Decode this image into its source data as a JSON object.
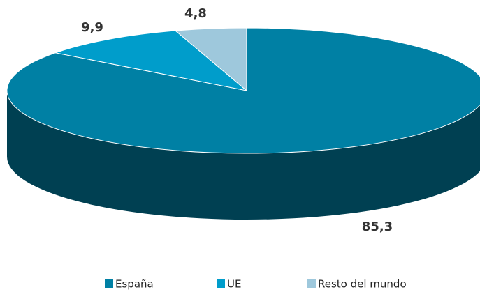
{
  "chart_data": {
    "type": "pie",
    "categories": [
      "España",
      "UE",
      "Resto del mundo"
    ],
    "values": [
      85.3,
      9.9,
      4.8
    ],
    "value_labels": [
      "85,3",
      "9,9",
      "4,8"
    ],
    "colors": [
      "#0080a4",
      "#009dcb",
      "#9ec8dc"
    ]
  }
}
